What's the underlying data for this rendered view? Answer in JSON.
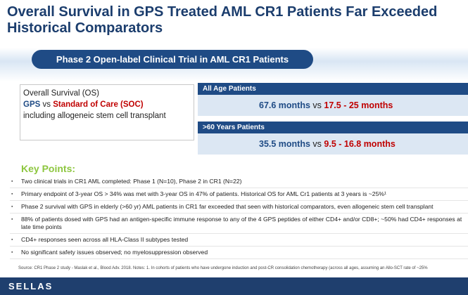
{
  "header": {
    "title_line1": "Overall Survival in GPS Treated AML CR1 Patients Far Exceeded",
    "title_line2": "Historical Comparators"
  },
  "banner": "Phase 2 Open-label Clinical Trial in AML CR1 Patients",
  "left_box": {
    "line1": "Overall Survival (OS)",
    "gps": "GPS",
    "vs": "vs",
    "soc": "Standard of Care (SOC)",
    "line3": "including allogeneic stem cell transplant"
  },
  "results": [
    {
      "header": "All Age Patients",
      "gps": "67.6 months",
      "vs": "vs",
      "soc": "17.5 - 25 months"
    },
    {
      "header": ">60 Years Patients",
      "gps": "35.5 months",
      "vs": "vs",
      "soc": "9.5 - 16.8 months"
    }
  ],
  "key_points": {
    "title": "Key Points:",
    "items": [
      "Two clinical trials in CR1 AML completed: Phase 1 (N=10), Phase 2 in CR1 (N=22)",
      "Primary endpoint of 3-year OS > 34% was met with 3-year OS in 47% of patients. Historical OS for AML Cr1 patients at 3 years is ~25%¹",
      "Phase 2 survival with GPS in elderly (>60 yr) AML patients in CR1 far exceeded that seen with historical comparators, even allogeneic stem cell transplant",
      "88% of patients dosed with GPS had an antigen-specific immune response to any of the 4 GPS peptides of either CD4+ and/or CD8+; ~50% had CD4+ responses at late time points",
      "CD4+ responses seen across all HLA-Class II subtypes tested",
      "No significant safety issues observed; no myelosuppression observed"
    ]
  },
  "source": "Source: CR1 Phase 2 study - Maslak et al., Blood Adv. 2018.  Notes: 1. In cohorts of patients who have undergone induction and post-CR consolidation chemotherapy (across all ages, assuming an Allo-SCT rate of ~25%",
  "footer": {
    "logo": "SELLAS"
  }
}
